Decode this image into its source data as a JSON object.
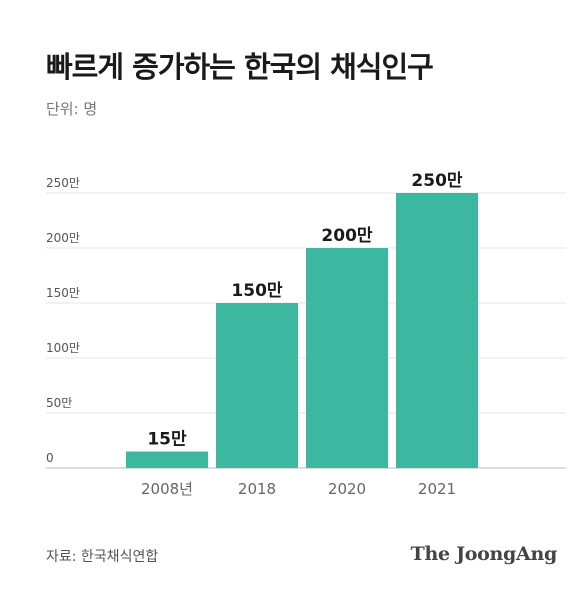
{
  "header": {
    "title": "빠르게 증가하는 한국의 채식인구",
    "unit": "단위: 명"
  },
  "chart_data": {
    "type": "bar",
    "categories": [
      "2008년",
      "2018",
      "2020",
      "2021"
    ],
    "values": [
      15,
      150,
      200,
      250
    ],
    "data_labels": [
      "15만",
      "150만",
      "200만",
      "250만"
    ],
    "ylim": [
      0,
      250
    ],
    "yticks": [
      0,
      50,
      100,
      150,
      200,
      250
    ],
    "ytick_labels": [
      "0",
      "50만",
      "100만",
      "150만",
      "200만",
      "250만"
    ],
    "grid": true,
    "bar_color": "#3db8a0"
  },
  "footer": {
    "source": "자료: 한국채식연합",
    "brand": "The JoongAng"
  }
}
